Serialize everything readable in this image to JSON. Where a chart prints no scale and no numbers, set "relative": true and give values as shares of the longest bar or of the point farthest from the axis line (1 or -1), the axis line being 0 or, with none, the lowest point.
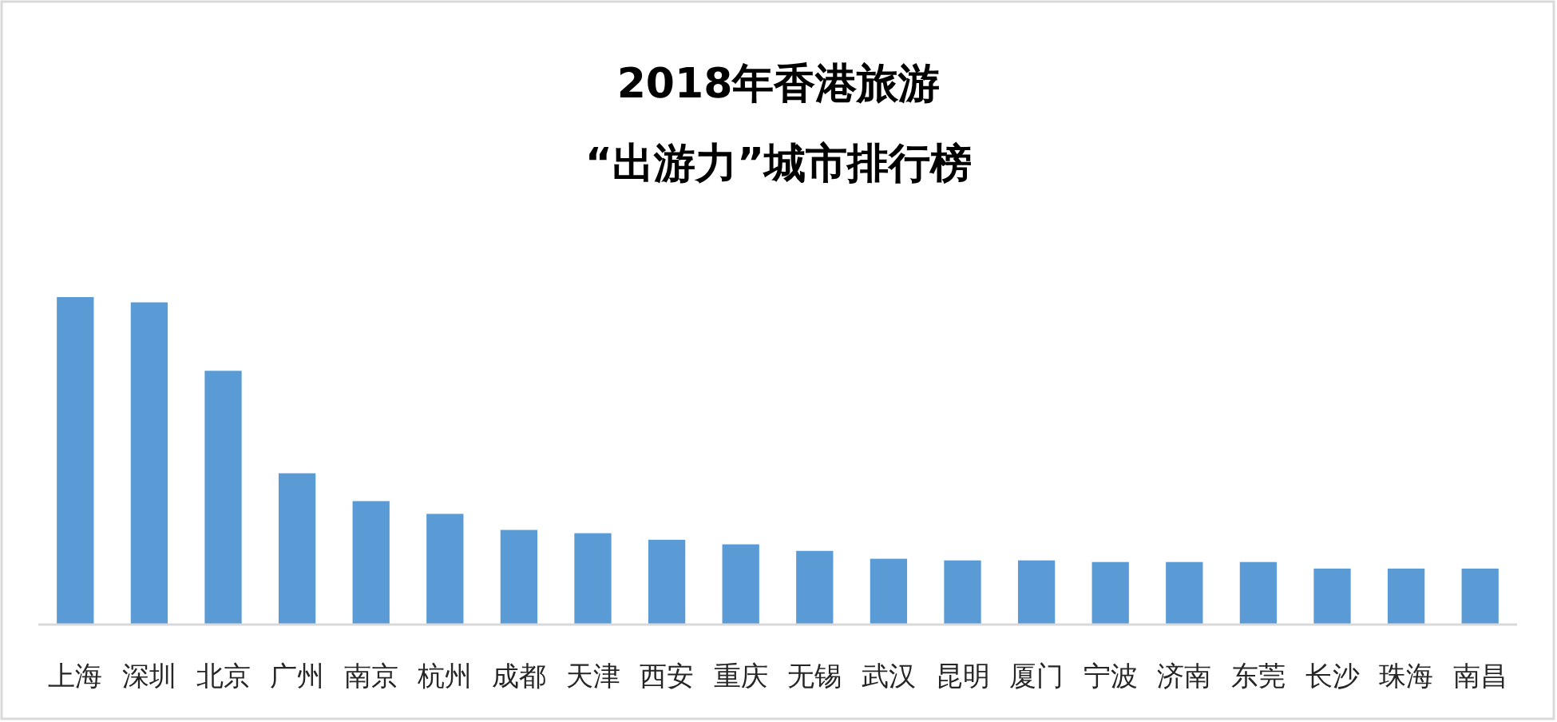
{
  "chart_data": {
    "type": "bar",
    "title": "2018年香港旅游\n“出游力”城市排行榜",
    "categories": [
      "上海",
      "深圳",
      "北京",
      "广州",
      "南京",
      "杭州",
      "成都",
      "天津",
      "西安",
      "重庆",
      "无锡",
      "武汉",
      "昆明",
      "厦门",
      "宁波",
      "济南",
      "东莞",
      "长沙",
      "珠海",
      "南昌"
    ],
    "values": [
      1,
      0.984,
      0.775,
      0.462,
      0.377,
      0.338,
      0.289,
      0.279,
      0.259,
      0.245,
      0.225,
      0.201,
      0.196,
      0.196,
      0.191,
      0.191,
      0.191,
      0.171,
      0.171,
      0.171
    ],
    "color": "#5b9bd5",
    "relative": true
  }
}
